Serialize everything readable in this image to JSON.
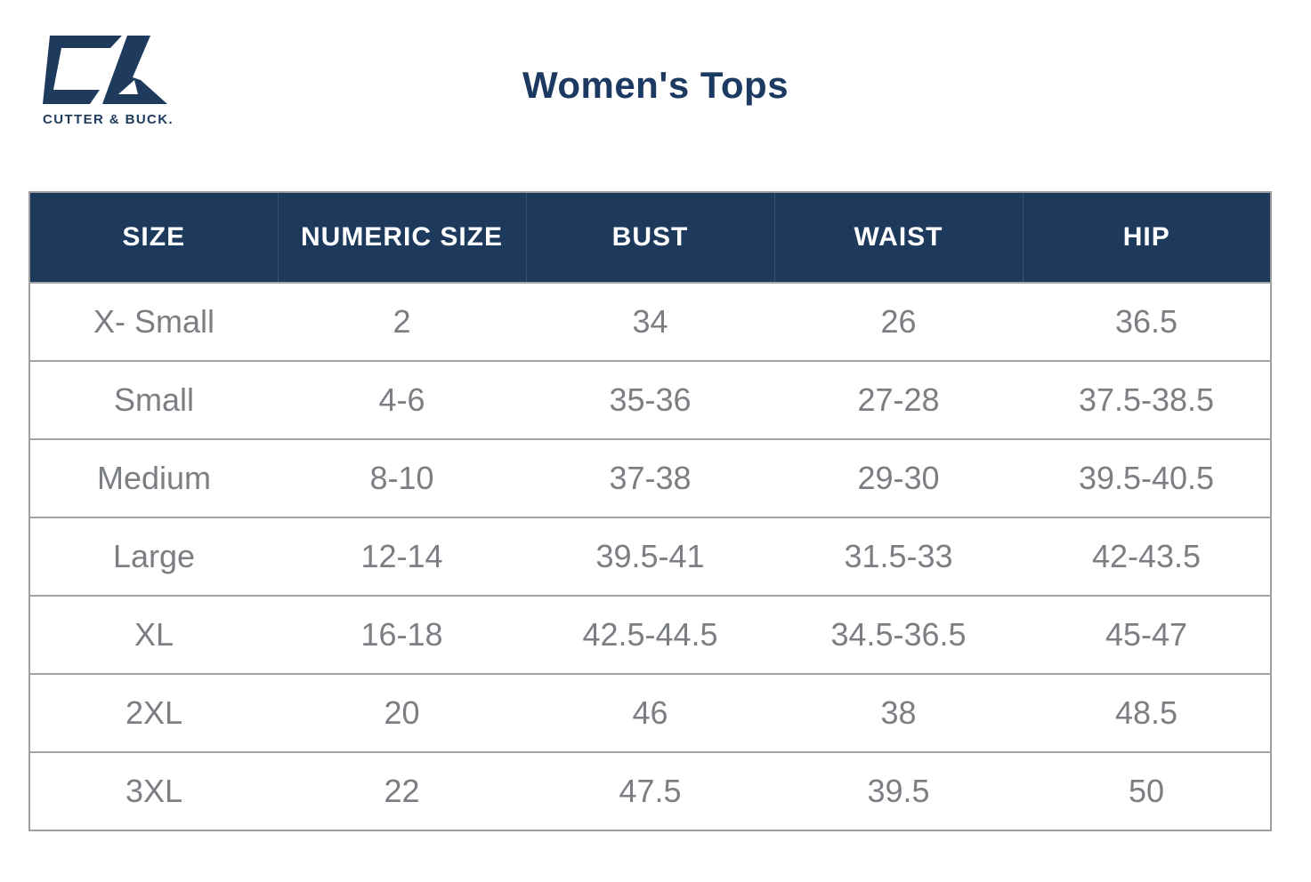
{
  "brand": {
    "monogram": "CB",
    "logo_text": "CUTTER & BUCK."
  },
  "title": "Women's Tops",
  "colors": {
    "navy_header_bg": "#1d3a5c",
    "navy_text": "#1c3a61",
    "header_text": "#ffffff",
    "body_text": "#7b7f84",
    "grid_line": "#a2a2a2"
  },
  "chart_data": {
    "type": "table",
    "title": "Women's Tops",
    "columns": [
      "SIZE",
      "NUMERIC SIZE",
      "BUST",
      "WAIST",
      "HIP"
    ],
    "rows": [
      [
        "X- Small",
        "2",
        "34",
        "26",
        "36.5"
      ],
      [
        "Small",
        "4-6",
        "35-36",
        "27-28",
        "37.5-38.5"
      ],
      [
        "Medium",
        "8-10",
        "37-38",
        "29-30",
        "39.5-40.5"
      ],
      [
        "Large",
        "12-14",
        "39.5-41",
        "31.5-33",
        "42-43.5"
      ],
      [
        "XL",
        "16-18",
        "42.5-44.5",
        "34.5-36.5",
        "45-47"
      ],
      [
        "2XL",
        "20",
        "46",
        "38",
        "48.5"
      ],
      [
        "3XL",
        "22",
        "47.5",
        "39.5",
        "50"
      ]
    ],
    "layout": {
      "grid": "horizontal-lines-only",
      "header_style": "navy-bar-white-uppercase",
      "column_alignment": "center"
    }
  }
}
